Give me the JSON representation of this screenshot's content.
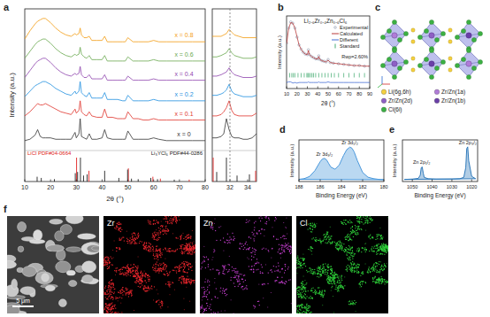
{
  "panel_labels": [
    "a",
    "b",
    "c",
    "d",
    "e",
    "f"
  ],
  "chart_data": [
    {
      "type": "line",
      "ylabel": "Intensity (a.u.)",
      "xlim": [
        10,
        80
      ],
      "ylim": [
        0,
        100
      ],
      "tick_labels": false,
      "x": [
        10,
        12,
        14,
        15,
        16,
        17,
        18,
        20,
        22,
        24,
        26,
        28,
        29.5,
        30,
        31,
        31.5,
        32,
        33,
        34,
        35,
        36,
        38,
        40,
        41,
        42,
        44,
        46,
        48,
        49,
        50,
        52,
        54,
        56,
        58,
        60,
        62,
        65,
        70,
        75,
        80
      ],
      "series": [
        {
          "name": "x = 0",
          "color": "#333333",
          "values": [
            4,
            5,
            8,
            12,
            7,
            6,
            6,
            6,
            5,
            5,
            5,
            5,
            10,
            6,
            9,
            20,
            7,
            6,
            5,
            9,
            5,
            5,
            6,
            12,
            6,
            5,
            5,
            5,
            5,
            11,
            5,
            5,
            5,
            5,
            6,
            5,
            4,
            4,
            4,
            4
          ]
        },
        {
          "name": "x = 0.1",
          "color": "#e0342c",
          "values": [
            22,
            25,
            29,
            31,
            30,
            30,
            31,
            29,
            27,
            25,
            24,
            23,
            27,
            24,
            26,
            33,
            25,
            23,
            22,
            25,
            22,
            21,
            21,
            27,
            21,
            21,
            20,
            20,
            20,
            25,
            20,
            20,
            19,
            19,
            20,
            19,
            19,
            19,
            19,
            19
          ]
        },
        {
          "name": "x = 0.2",
          "color": "#1f8fe0",
          "values": [
            36,
            40,
            44,
            45,
            46,
            47,
            47,
            45,
            42,
            40,
            38,
            37,
            40,
            38,
            40,
            47,
            39,
            37,
            36,
            39,
            35,
            35,
            35,
            39,
            34,
            34,
            34,
            33,
            33,
            37,
            33,
            33,
            33,
            33,
            34,
            33,
            33,
            33,
            33,
            33
          ]
        },
        {
          "name": "x = 0.4",
          "color": "#8e44ad",
          "values": [
            50,
            55,
            60,
            62,
            63,
            64,
            64,
            61,
            57,
            54,
            52,
            51,
            53,
            52,
            53,
            58,
            52,
            50,
            50,
            52,
            49,
            49,
            49,
            52,
            48,
            48,
            48,
            48,
            48,
            51,
            48,
            48,
            48,
            48,
            49,
            48,
            48,
            48,
            48,
            48
          ]
        },
        {
          "name": "x = 0.6",
          "color": "#6aa84f",
          "values": [
            64,
            69,
            74,
            76,
            77,
            78,
            78,
            75,
            71,
            68,
            66,
            65,
            67,
            66,
            67,
            72,
            67,
            65,
            64,
            66,
            63,
            63,
            63,
            66,
            62,
            62,
            62,
            62,
            62,
            65,
            62,
            62,
            62,
            62,
            63,
            62,
            62,
            62,
            62,
            62
          ]
        },
        {
          "name": "x = 0.8",
          "color": "#f39c12",
          "values": [
            78,
            84,
            89,
            91,
            92,
            93,
            93,
            90,
            86,
            83,
            81,
            80,
            82,
            81,
            82,
            86,
            81,
            79,
            79,
            80,
            77,
            77,
            77,
            80,
            76,
            76,
            76,
            76,
            76,
            79,
            76,
            76,
            76,
            76,
            77,
            76,
            76,
            76,
            76,
            76
          ]
        }
      ]
    },
    {
      "type": "stem",
      "xlabel": "2θ (°)",
      "xlim": [
        10,
        80
      ],
      "ylim": [
        0,
        100
      ],
      "xticks": [
        10,
        20,
        30,
        40,
        50,
        60,
        70,
        80
      ],
      "tick_labels": "x",
      "series": [
        {
          "name": "LiCl PDF#04-0664",
          "color": "#e02020",
          "x": [
            30.1,
            34.9,
            50.2,
            59.7,
            62.6,
            73.8
          ],
          "values": [
            100,
            45,
            55,
            20,
            12,
            8
          ]
        },
        {
          "name": "Li₃YCl₆ PDF#44-0286",
          "color": "#222222",
          "x": [
            14.8,
            16.4,
            21.5,
            29.6,
            30.5,
            31.6,
            32.8,
            34.2,
            41.0,
            46.5,
            49.9,
            51.4,
            54.0,
            58.9,
            61.5,
            68.0
          ],
          "values": [
            20,
            15,
            10,
            35,
            40,
            100,
            25,
            30,
            45,
            15,
            50,
            12,
            10,
            15,
            10,
            8
          ]
        }
      ]
    },
    {
      "type": "line",
      "xlim": [
        30,
        35
      ],
      "ylim": [
        0,
        100
      ],
      "xticks": [
        32,
        34
      ],
      "tick_labels": "x",
      "dashed_line_x": 32,
      "x": [
        30,
        30.5,
        31,
        31.3,
        31.6,
        31.9,
        32.2,
        32.5,
        33,
        33.5,
        34,
        34.5,
        35
      ],
      "series": [
        {
          "color": "#333333",
          "values": [
            6,
            6,
            7,
            9,
            20,
            12,
            7,
            6,
            6,
            5,
            5,
            6,
            9
          ]
        },
        {
          "color": "#e0342c",
          "values": [
            22,
            22,
            23,
            25,
            28,
            33,
            26,
            23,
            22,
            22,
            22,
            22,
            24
          ]
        },
        {
          "color": "#1f8fe0",
          "values": [
            37,
            37,
            38,
            39,
            41,
            45,
            40,
            38,
            37,
            36,
            36,
            36,
            37
          ]
        },
        {
          "color": "#8e44ad",
          "values": [
            51,
            51,
            52,
            53,
            54,
            57,
            54,
            52,
            51,
            50,
            50,
            50,
            51
          ]
        },
        {
          "color": "#6aa84f",
          "values": [
            65,
            65,
            66,
            67,
            68,
            71,
            68,
            66,
            65,
            64,
            64,
            64,
            65
          ]
        },
        {
          "color": "#f39c12",
          "values": [
            80,
            80,
            80,
            81,
            82,
            85,
            83,
            81,
            80,
            79,
            79,
            79,
            79
          ]
        }
      ]
    },
    {
      "type": "line",
      "title": "Li₂.₆Zr₀.₄Zn₀.₆Cl₆",
      "annotation": "Rwp=2.60%",
      "xlabel": "2θ (°)",
      "ylabel": "Intensity (a.u.)",
      "xlim": [
        10,
        90
      ],
      "ylim": [
        -20,
        100
      ],
      "xticks": [
        10,
        20,
        30,
        40,
        50,
        60,
        70,
        80,
        90
      ],
      "tick_labels": "x",
      "legend": "upper right",
      "x": [
        10,
        12,
        14,
        16,
        18,
        20,
        22,
        24,
        26,
        28,
        30,
        31,
        32,
        34,
        36,
        38,
        40,
        41,
        42,
        44,
        46,
        48,
        50,
        52,
        55,
        60,
        65,
        70,
        75,
        80,
        85,
        90
      ],
      "series": [
        {
          "name": "Experimental",
          "type": "scatter",
          "marker": "circle",
          "color": "#8d99ae",
          "values": [
            55,
            80,
            90,
            88,
            80,
            65,
            52,
            45,
            40,
            37,
            36,
            44,
            36,
            33,
            31,
            29,
            29,
            34,
            28,
            26,
            25,
            24,
            28,
            23,
            22,
            21,
            20,
            19,
            18,
            18,
            17,
            17
          ]
        },
        {
          "name": "Calculated",
          "type": "line",
          "color": "#b22222",
          "values": [
            54,
            79,
            89,
            88,
            80,
            66,
            52,
            45,
            40,
            37,
            36,
            43,
            36,
            33,
            31,
            29,
            29,
            33,
            28,
            26,
            25,
            24,
            27,
            23,
            22,
            21,
            20,
            19,
            18,
            18,
            17,
            17
          ]
        },
        {
          "name": "Different",
          "type": "line",
          "color": "#2f5dd0",
          "values": [
            -10,
            -9,
            -9,
            -11,
            -10,
            -11,
            -10,
            -10,
            -10,
            -10,
            -10,
            -9,
            -10,
            -10,
            -10,
            -10,
            -10,
            -9,
            -10,
            -10,
            -10,
            -10,
            -9,
            -10,
            -10,
            -10,
            -10,
            -10,
            -10,
            -10,
            -10,
            -10
          ]
        },
        {
          "name": "Standard",
          "type": "tick",
          "color": "#1a9850",
          "x": [
            13,
            15,
            16.5,
            18,
            21,
            24,
            27,
            29.5,
            30.5,
            31.5,
            33,
            34.5,
            36,
            38,
            41,
            44,
            47,
            50,
            53,
            56,
            60,
            65,
            70,
            75,
            80,
            85
          ],
          "values": [
            2,
            2,
            2,
            2,
            2,
            2,
            2,
            2,
            2,
            2,
            2,
            2,
            2,
            2,
            2,
            2,
            2,
            2,
            2,
            2,
            2,
            2,
            2,
            2,
            2,
            2
          ]
        }
      ]
    },
    {
      "type": "area",
      "xlabel": "Binding Energy (eV)",
      "ylabel": "Intensity (a.u.)",
      "xlim": [
        188,
        180
      ],
      "ylim": [
        0,
        115
      ],
      "xticks": [
        188,
        186,
        184,
        182,
        180
      ],
      "tick_labels": "x",
      "color": "#3a8fd8",
      "x": [
        188,
        187.5,
        187,
        186.5,
        186,
        185.8,
        185.6,
        185.4,
        185.2,
        185,
        184.6,
        184.2,
        183.8,
        183.5,
        183.2,
        183,
        182.8,
        182.5,
        182,
        181.5,
        181,
        180.5,
        180
      ],
      "values": [
        6,
        8,
        14,
        30,
        55,
        62,
        64,
        60,
        50,
        40,
        34,
        46,
        72,
        88,
        95,
        92,
        82,
        58,
        25,
        12,
        8,
        6,
        5
      ],
      "annotations": [
        {
          "text": "Zr 3d₃/₂",
          "x": 185.6,
          "y": 72
        },
        {
          "text": "Zr 3d₅/₂",
          "x": 183.2,
          "y": 102
        }
      ]
    },
    {
      "type": "area",
      "xlabel": "Binding Energy (eV)",
      "ylabel": "Intensity (a.u.)",
      "xlim": [
        1055,
        1017
      ],
      "ylim": [
        0,
        120
      ],
      "xticks": [
        1050,
        1040,
        1030,
        1020
      ],
      "tick_labels": "x",
      "color": "#1f6fb5",
      "x": [
        1054,
        1050,
        1047,
        1046,
        1045.5,
        1045,
        1044.5,
        1044,
        1042,
        1038,
        1034,
        1030,
        1026,
        1024,
        1023,
        1022.5,
        1022,
        1021.5,
        1020,
        1018
      ],
      "values": [
        6,
        7,
        9,
        18,
        40,
        42,
        25,
        12,
        8,
        7,
        7,
        7,
        8,
        12,
        40,
        95,
        100,
        60,
        15,
        8
      ],
      "annotations": [
        {
          "text": "Zn 2p₁/₂",
          "x": 1045.3,
          "y": 52
        },
        {
          "text": "Zn 2p₃/₂",
          "x": 1022,
          "y": 108
        }
      ]
    }
  ],
  "structure": {
    "legend": [
      {
        "label": "Li(6g,6h)",
        "color": "#f4d03f"
      },
      {
        "label": "Zr/Zn(1a)",
        "color": "#b07cd8"
      },
      {
        "label": "Zr/Zn(2d)",
        "color": "#8e5fc4"
      },
      {
        "label": "Zr/Zn(1b)",
        "color": "#6a3fa8"
      },
      {
        "label": "Cl(6i)",
        "color": "#3cb043"
      }
    ]
  },
  "maps": {
    "scale_bar": "5 μm",
    "images": [
      {
        "label": "Zr",
        "color": "#e8262d"
      },
      {
        "label": "Zn",
        "color": "#c63fd0"
      },
      {
        "label": "Cl",
        "color": "#2fd13a"
      }
    ]
  }
}
